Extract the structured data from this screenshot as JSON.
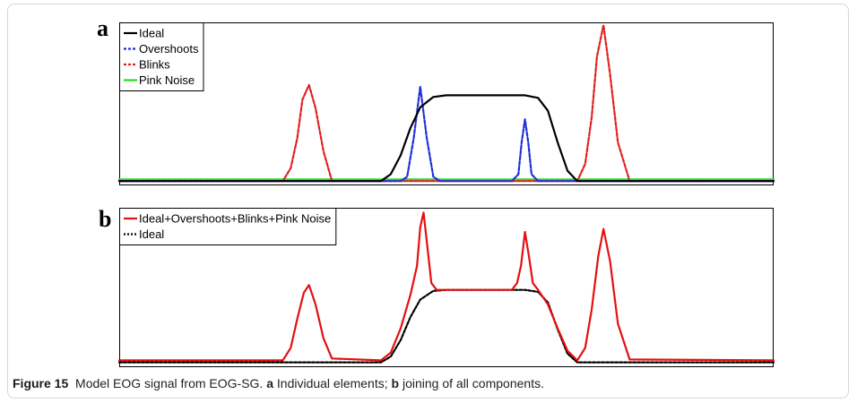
{
  "caption": {
    "figure_label": "Figure 15",
    "text_1": "  Model EOG signal from EOG-SG. ",
    "tag_a": "a",
    "text_2": " Individual elements; ",
    "tag_b": "b",
    "text_3": " joining of all components."
  },
  "colors": {
    "ideal": "#000000",
    "overshoots": "#1f2fd6",
    "blinks": "#e02020",
    "pink_noise": "#22dd22",
    "combined": "#e41010"
  },
  "chart_data": [
    {
      "panel": "a",
      "type": "line",
      "title": "",
      "xlabel": "",
      "ylabel": "",
      "xlim": [
        0,
        1000
      ],
      "ylim": [
        -0.05,
        1.85
      ],
      "grid": false,
      "legend_position": "top-left",
      "series": [
        {
          "name": "Ideal",
          "color": "#000000",
          "dash": "solid",
          "x": [
            0,
            400,
            415,
            430,
            445,
            460,
            480,
            500,
            560,
            620,
            640,
            655,
            670,
            685,
            700,
            1000
          ],
          "y": [
            0,
            0,
            0.08,
            0.3,
            0.62,
            0.86,
            0.98,
            1.0,
            1.0,
            1.0,
            0.97,
            0.82,
            0.45,
            0.12,
            0,
            0
          ]
        },
        {
          "name": "Overshoots",
          "color": "#1f2fd6",
          "dash": "dashed",
          "x": [
            0,
            430,
            440,
            450,
            460,
            470,
            480,
            490,
            600,
            610,
            615,
            620,
            625,
            630,
            640,
            1000
          ],
          "y": [
            0,
            0,
            0.05,
            0.5,
            1.1,
            0.5,
            0.05,
            0,
            0,
            0.08,
            0.45,
            0.72,
            0.45,
            0.08,
            0,
            0
          ]
        },
        {
          "name": "Blinks",
          "color": "#e02020",
          "dash": "dashed",
          "x": [
            0,
            250,
            262,
            272,
            280,
            290,
            300,
            312,
            325,
            700,
            712,
            722,
            730,
            740,
            750,
            762,
            780,
            1000
          ],
          "y": [
            0,
            0,
            0.15,
            0.5,
            0.95,
            1.12,
            0.85,
            0.35,
            0,
            0,
            0.2,
            0.75,
            1.45,
            1.82,
            1.25,
            0.45,
            0,
            0
          ]
        },
        {
          "name": "Pink Noise",
          "color": "#22dd22",
          "dash": "solid",
          "x": [
            0,
            1000
          ],
          "y": [
            0.02,
            0.02
          ]
        }
      ]
    },
    {
      "panel": "b",
      "type": "line",
      "title": "",
      "xlabel": "",
      "ylabel": "",
      "xlim": [
        0,
        1000
      ],
      "ylim": [
        -0.05,
        1.6
      ],
      "grid": false,
      "legend_position": "top-left",
      "series": [
        {
          "name": "Ideal+Overshoots+Blinks+Pink Noise",
          "color": "#e41010",
          "dash": "solid",
          "x": [
            0,
            250,
            262,
            272,
            282,
            290,
            300,
            312,
            325,
            400,
            415,
            430,
            445,
            455,
            460,
            465,
            470,
            477,
            485,
            495,
            560,
            600,
            608,
            614,
            620,
            626,
            632,
            640,
            655,
            670,
            685,
            700,
            712,
            722,
            732,
            740,
            750,
            762,
            780,
            1000
          ],
          "y": [
            0.02,
            0.02,
            0.15,
            0.45,
            0.72,
            0.8,
            0.6,
            0.25,
            0.04,
            0.02,
            0.1,
            0.35,
            0.7,
            1.0,
            1.4,
            1.55,
            1.25,
            0.82,
            0.75,
            0.75,
            0.75,
            0.75,
            0.82,
            1.0,
            1.35,
            1.1,
            0.82,
            0.75,
            0.6,
            0.35,
            0.12,
            0.02,
            0.15,
            0.55,
            1.1,
            1.38,
            1.05,
            0.4,
            0.03,
            0.02
          ]
        },
        {
          "name": "Ideal",
          "color": "#000000",
          "dash": "dotted",
          "x": [
            0,
            400,
            415,
            430,
            445,
            460,
            480,
            500,
            560,
            620,
            640,
            655,
            670,
            685,
            700,
            1000
          ],
          "y": [
            0,
            0,
            0.06,
            0.23,
            0.47,
            0.65,
            0.74,
            0.75,
            0.75,
            0.75,
            0.73,
            0.62,
            0.34,
            0.09,
            0,
            0
          ]
        }
      ]
    }
  ]
}
